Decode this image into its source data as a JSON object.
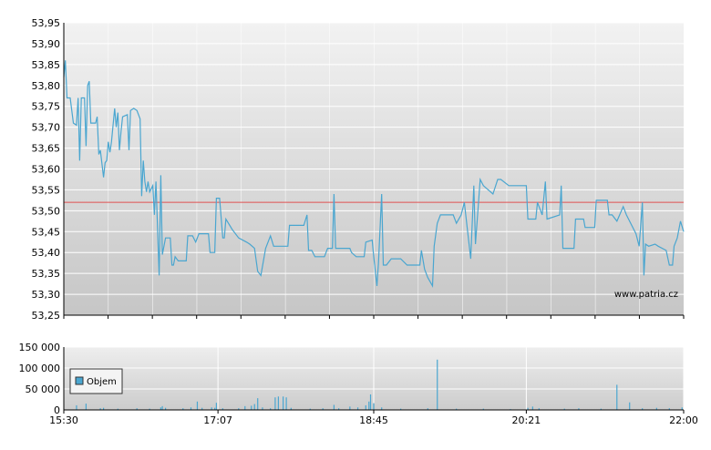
{
  "chart_data": [
    {
      "type": "line",
      "color": "#4aa6d0",
      "reference_line": 53.52,
      "reference_color": "#e05050",
      "annotation": "www.patria.cz",
      "xlim": [
        930,
        1320
      ],
      "ylim": [
        53.25,
        53.95
      ],
      "yticks": [
        {
          "value": 53.25,
          "label": "53,25"
        },
        {
          "value": 53.3,
          "label": "53,30"
        },
        {
          "value": 53.35,
          "label": "53,35"
        },
        {
          "value": 53.4,
          "label": "53,40"
        },
        {
          "value": 53.45,
          "label": "53,45"
        },
        {
          "value": 53.5,
          "label": "53,50"
        },
        {
          "value": 53.55,
          "label": "53,55"
        },
        {
          "value": 53.6,
          "label": "53,60"
        },
        {
          "value": 53.65,
          "label": "53,65"
        },
        {
          "value": 53.7,
          "label": "53,70"
        },
        {
          "value": 53.75,
          "label": "53,75"
        },
        {
          "value": 53.8,
          "label": "53,80"
        },
        {
          "value": 53.85,
          "label": "53,85"
        },
        {
          "value": 53.9,
          "label": "53,90"
        },
        {
          "value": 53.95,
          "label": "53,95"
        }
      ],
      "grid": true,
      "x": [
        930,
        931,
        932,
        934,
        936,
        938,
        939,
        940,
        941,
        943,
        944,
        945,
        946,
        947,
        950,
        951,
        952,
        953,
        955,
        956,
        957,
        958,
        959,
        960,
        962,
        963,
        964,
        965,
        966,
        967,
        970,
        971,
        972,
        974,
        976,
        978,
        979,
        980,
        981,
        982,
        983,
        984,
        986,
        987,
        988,
        990,
        991,
        992,
        994,
        997,
        998,
        999,
        1000,
        1002,
        1007,
        1008,
        1011,
        1013,
        1015,
        1021,
        1022,
        1025,
        1026,
        1028,
        1030,
        1031,
        1032,
        1036,
        1040,
        1045,
        1047,
        1050,
        1052,
        1054,
        1057,
        1060,
        1062,
        1071,
        1072,
        1081,
        1083,
        1084,
        1086,
        1088,
        1094,
        1096,
        1099,
        1100,
        1101,
        1110,
        1111,
        1114,
        1119,
        1120,
        1124,
        1125,
        1127,
        1128,
        1130,
        1131,
        1133,
        1136,
        1142,
        1146,
        1154,
        1155,
        1157,
        1159,
        1162,
        1163,
        1165,
        1167,
        1175,
        1177,
        1180,
        1182,
        1186,
        1188,
        1189,
        1192,
        1194,
        1200,
        1203,
        1205,
        1210,
        1221,
        1222,
        1227,
        1228,
        1231,
        1233,
        1234,
        1242,
        1243,
        1244,
        1251,
        1252,
        1257,
        1258,
        1264,
        1265,
        1272,
        1273,
        1275,
        1278,
        1282,
        1284,
        1290,
        1292,
        1294,
        1295,
        1296,
        1298,
        1302,
        1304,
        1309,
        1311,
        1313,
        1314,
        1316,
        1318,
        1320
      ],
      "values": [
        53.82,
        53.86,
        53.77,
        53.77,
        53.71,
        53.705,
        53.77,
        53.62,
        53.77,
        53.77,
        53.655,
        53.8,
        53.81,
        53.71,
        53.71,
        53.725,
        53.635,
        53.645,
        53.58,
        53.615,
        53.62,
        53.665,
        53.64,
        53.665,
        53.745,
        53.7,
        53.735,
        53.645,
        53.69,
        53.725,
        53.73,
        53.645,
        53.74,
        53.745,
        53.74,
        53.72,
        53.535,
        53.62,
        53.57,
        53.545,
        53.57,
        53.545,
        53.56,
        53.49,
        53.57,
        53.345,
        53.585,
        53.395,
        53.435,
        53.435,
        53.37,
        53.37,
        53.39,
        53.38,
        53.38,
        53.44,
        53.44,
        53.425,
        53.445,
        53.445,
        53.4,
        53.4,
        53.53,
        53.53,
        53.435,
        53.435,
        53.48,
        53.455,
        53.435,
        53.425,
        53.42,
        53.41,
        53.355,
        53.345,
        53.41,
        53.44,
        53.415,
        53.415,
        53.465,
        53.465,
        53.49,
        53.405,
        53.405,
        53.39,
        53.39,
        53.41,
        53.41,
        53.54,
        53.41,
        53.41,
        53.4,
        53.39,
        53.39,
        53.425,
        53.43,
        53.39,
        53.32,
        53.375,
        53.54,
        53.37,
        53.37,
        53.385,
        53.385,
        53.37,
        53.37,
        53.405,
        53.36,
        53.34,
        53.32,
        53.415,
        53.47,
        53.49,
        53.49,
        53.47,
        53.49,
        53.52,
        53.385,
        53.56,
        53.42,
        53.575,
        53.56,
        53.54,
        53.575,
        53.575,
        53.56,
        53.56,
        53.48,
        53.48,
        53.52,
        53.49,
        53.57,
        53.48,
        53.49,
        53.56,
        53.41,
        53.41,
        53.48,
        53.48,
        53.46,
        53.46,
        53.525,
        53.525,
        53.49,
        53.49,
        53.475,
        53.51,
        53.49,
        53.445,
        53.415,
        53.52,
        53.345,
        53.42,
        53.415,
        53.42,
        53.415,
        53.405,
        53.37,
        53.37,
        53.415,
        53.435,
        53.475,
        53.45
      ]
    },
    {
      "type": "bar",
      "xlim": [
        930,
        1320
      ],
      "xticks": [
        {
          "value": 930,
          "label": "15:30"
        },
        {
          "value": 1027,
          "label": "17:07"
        },
        {
          "value": 1125,
          "label": "18:45"
        },
        {
          "value": 1221,
          "label": "20:21"
        },
        {
          "value": 1320,
          "label": "22:00"
        }
      ],
      "ylim": [
        0,
        150000
      ],
      "yticks": [
        0,
        {
          "value": 50000,
          "label": "50 000"
        },
        {
          "value": 100000,
          "label": "100 000"
        },
        {
          "value": 150000,
          "label": "150 000"
        }
      ],
      "grid": true,
      "legend": "bottom-left",
      "x": [
        938,
        944,
        953,
        955,
        964,
        976,
        984,
        991,
        992,
        994,
        1005,
        1010,
        1014,
        1017,
        1023,
        1025,
        1026,
        1030,
        1040,
        1044,
        1048,
        1050,
        1052,
        1055,
        1060,
        1063,
        1065,
        1068,
        1070,
        1073,
        1085,
        1093,
        1100,
        1103,
        1110,
        1115,
        1120,
        1122,
        1123,
        1125,
        1130,
        1142,
        1159,
        1165,
        1177,
        1194,
        1211,
        1222,
        1225,
        1229,
        1245,
        1254,
        1268,
        1278,
        1286,
        1294,
        1303,
        1311,
        1319
      ],
      "series": [
        {
          "name": "Objem",
          "color": "#4aa6d0",
          "values": [
            11000,
            15000,
            4000,
            5000,
            3000,
            4000,
            3000,
            6000,
            9000,
            5000,
            4000,
            6000,
            20000,
            5000,
            6000,
            5000,
            17000,
            4000,
            4000,
            9000,
            10000,
            14000,
            28000,
            6000,
            4000,
            30000,
            32000,
            32000,
            30000,
            5000,
            3000,
            4000,
            12000,
            4000,
            8000,
            6000,
            11000,
            20000,
            37000,
            16000,
            6000,
            3000,
            4000,
            120000,
            3000,
            3000,
            2000,
            5000,
            8000,
            4000,
            3000,
            4000,
            3000,
            60000,
            18000,
            4000,
            5000,
            4000,
            6000
          ]
        }
      ]
    }
  ]
}
